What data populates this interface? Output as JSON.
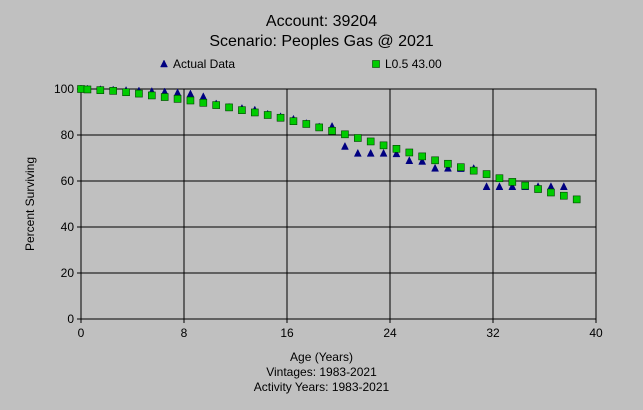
{
  "chart_data": {
    "type": "scatter",
    "title": "Account: 39204",
    "subtitle": "Scenario: Peoples Gas @ 2021",
    "xlabel": "Age (Years)",
    "ylabel": "Percent Surviving",
    "xlim": [
      0,
      40
    ],
    "ylim": [
      0,
      100
    ],
    "xticks": [
      0,
      8,
      16,
      24,
      32,
      40
    ],
    "yticks": [
      0,
      20,
      40,
      60,
      80,
      100
    ],
    "grid": true,
    "legend_position": "top",
    "footer": [
      "Vintages: 1983-2021",
      "Activity Years: 1983-2021"
    ],
    "series": [
      {
        "name": "Actual Data",
        "marker": "triangle",
        "color": "#000080",
        "points": [
          [
            0,
            100
          ],
          [
            0.5,
            99.9
          ],
          [
            1.5,
            99.7
          ],
          [
            2.5,
            99.5
          ],
          [
            3.5,
            99.3
          ],
          [
            4.5,
            99.1
          ],
          [
            5.5,
            98.9
          ],
          [
            6.5,
            98.7
          ],
          [
            7.5,
            98.3
          ],
          [
            8.5,
            97.8
          ],
          [
            9.5,
            96.6
          ],
          [
            10.5,
            93.5
          ],
          [
            11.5,
            92.0
          ],
          [
            12.5,
            91.5
          ],
          [
            13.5,
            90.8
          ],
          [
            14.5,
            89.0
          ],
          [
            15.5,
            87.9
          ],
          [
            16.5,
            86.8
          ],
          [
            17.5,
            85.0
          ],
          [
            18.5,
            83.5
          ],
          [
            19.5,
            83.7
          ],
          [
            20.5,
            75.0
          ],
          [
            21.5,
            72.0
          ],
          [
            22.5,
            72.0
          ],
          [
            23.5,
            72.0
          ],
          [
            24.5,
            71.8
          ],
          [
            25.5,
            68.8
          ],
          [
            26.5,
            68.5
          ],
          [
            27.5,
            65.5
          ],
          [
            28.5,
            65.5
          ],
          [
            29.5,
            65.4
          ],
          [
            30.5,
            65.4
          ],
          [
            31.5,
            57.5
          ],
          [
            32.5,
            57.5
          ],
          [
            33.5,
            57.5
          ],
          [
            34.5,
            57.5
          ],
          [
            35.5,
            57.5
          ],
          [
            36.5,
            57.5
          ],
          [
            37.5,
            57.5
          ]
        ]
      },
      {
        "name": "L0.5 43.00",
        "marker": "square",
        "color": "#00cc00",
        "points": [
          [
            0,
            100
          ],
          [
            0.5,
            99.8
          ],
          [
            1.5,
            99.5
          ],
          [
            2.5,
            99.2
          ],
          [
            3.5,
            98.6
          ],
          [
            4.5,
            98.0
          ],
          [
            5.5,
            97.2
          ],
          [
            6.5,
            96.5
          ],
          [
            7.5,
            95.7
          ],
          [
            8.5,
            95.0
          ],
          [
            9.5,
            94.0
          ],
          [
            10.5,
            93.0
          ],
          [
            11.5,
            92.0
          ],
          [
            12.5,
            90.8
          ],
          [
            13.5,
            89.8
          ],
          [
            14.5,
            88.7
          ],
          [
            15.5,
            87.5
          ],
          [
            16.5,
            86.0
          ],
          [
            17.5,
            84.8
          ],
          [
            18.5,
            83.3
          ],
          [
            19.5,
            81.8
          ],
          [
            20.5,
            80.3
          ],
          [
            21.5,
            78.7
          ],
          [
            22.5,
            77.2
          ],
          [
            23.5,
            75.5
          ],
          [
            24.5,
            74.0
          ],
          [
            25.5,
            72.4
          ],
          [
            26.5,
            70.7
          ],
          [
            27.5,
            69.0
          ],
          [
            28.5,
            67.5
          ],
          [
            29.5,
            66.0
          ],
          [
            30.5,
            64.5
          ],
          [
            31.5,
            63.0
          ],
          [
            32.5,
            61.2
          ],
          [
            33.5,
            59.6
          ],
          [
            34.5,
            58.0
          ],
          [
            35.5,
            56.5
          ],
          [
            36.5,
            55.0
          ],
          [
            37.5,
            53.6
          ],
          [
            38.5,
            52.0
          ]
        ]
      }
    ]
  }
}
